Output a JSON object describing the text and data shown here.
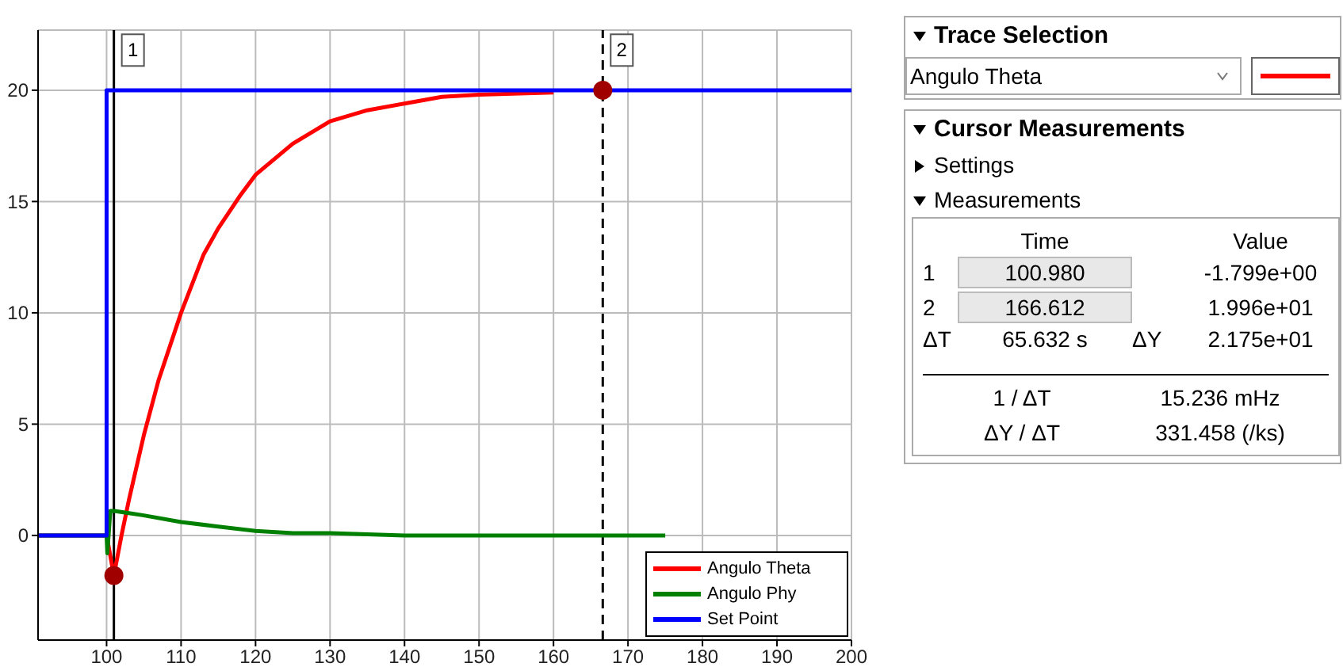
{
  "chart_data": {
    "type": "line",
    "xlim": [
      90.8,
      200
    ],
    "ylim": [
      -4.7,
      22.7
    ],
    "xticks": [
      100,
      110,
      120,
      130,
      140,
      150,
      160,
      170,
      180,
      190,
      200
    ],
    "yticks": [
      0,
      5,
      10,
      15,
      20
    ],
    "grid": true,
    "legend": "bottom right",
    "marker": "none",
    "series": [
      {
        "name": "Angulo Theta",
        "color": "#ff0000",
        "x": [
          90.8,
          100,
          100.98,
          102,
          103,
          105,
          107,
          110,
          113,
          115,
          118,
          120,
          125,
          130,
          135,
          140,
          145,
          150,
          160
        ],
        "values": [
          0,
          0,
          -1.8,
          0,
          1.6,
          4.5,
          7,
          10,
          12.6,
          13.8,
          15.3,
          16.2,
          17.6,
          18.6,
          19.1,
          19.4,
          19.7,
          19.8,
          19.9
        ]
      },
      {
        "name": "Angulo Phy",
        "color": "#008000",
        "x": [
          90.8,
          100,
          100.1,
          100.5,
          101,
          103,
          105,
          110,
          115,
          120,
          125,
          130,
          140,
          150,
          160,
          175
        ],
        "values": [
          0,
          0,
          -0.8,
          1.1,
          1.1,
          1,
          0.9,
          0.6,
          0.4,
          0.2,
          0.1,
          0.1,
          0,
          0,
          0,
          0
        ]
      },
      {
        "name": "Set Point",
        "color": "#0000ff",
        "x": [
          90.8,
          100,
          100,
          200
        ],
        "values": [
          0,
          0,
          20,
          20
        ]
      },
      {
        "type": "scatter",
        "marker": "circle",
        "color": "#a00000",
        "x": [
          100.98,
          166.612
        ],
        "values": [
          -1.8,
          20
        ]
      }
    ],
    "ref_lines": [
      {
        "axis": "x",
        "value": 100.98,
        "line_style": "solid",
        "color": "#000000"
      },
      {
        "axis": "x",
        "value": 166.612,
        "line_style": "dashed",
        "color": "#000000"
      }
    ],
    "annotations": [
      "Trace Selection",
      "Angulo Theta",
      "Cursor Measurements",
      "Settings",
      "Measurements",
      "Time",
      "Value",
      "1",
      "100.980",
      "-1.799e+00",
      "2",
      "166.612",
      "1.996e+01",
      "ΔT",
      "65.632 s",
      "ΔY",
      "2.175e+01",
      "1 / ΔT",
      "15.236 mHz",
      "ΔY / ΔT",
      "331.458 (/ks)",
      {
        "text": "1",
        "x": 100.98,
        "y": 21.8
      },
      {
        "text": "2",
        "x": 166.612,
        "y": 21.8
      }
    ]
  }
}
